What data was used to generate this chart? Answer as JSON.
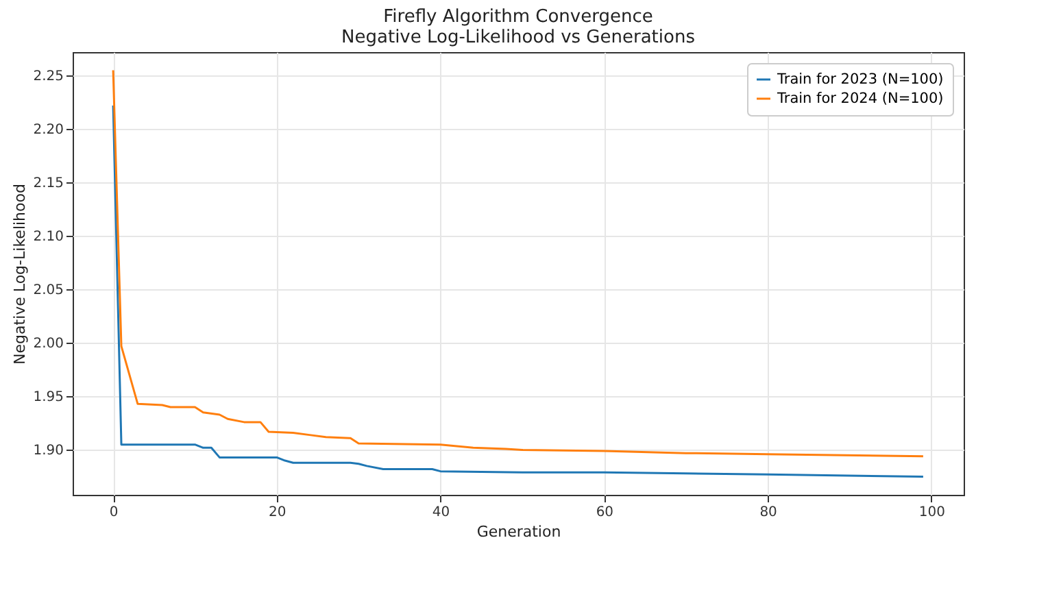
{
  "chart_data": {
    "type": "line",
    "title": "Firefly Algorithm Convergence",
    "subtitle": "Negative Log-Likelihood vs Generations",
    "xlabel": "Generation",
    "ylabel": "Negative Log-Likelihood",
    "xlim": [
      -4.95,
      103.95
    ],
    "xticks": [
      0,
      20,
      40,
      60,
      80,
      100
    ],
    "ylim": [
      1.858,
      2.272
    ],
    "yticks": [
      {
        "value": 1.9,
        "label": "1.90"
      },
      1.95,
      {
        "value": 2,
        "label": "2.00"
      },
      2.05,
      {
        "value": 2.1,
        "label": "2.10"
      },
      2.15,
      {
        "value": 2.2,
        "label": "2.20"
      },
      2.25
    ],
    "grid": true,
    "legend": "top right",
    "series": [
      {
        "name": "Train for 2023 (N=100)",
        "color": "#1f77b4",
        "x": [
          0,
          1,
          10,
          11,
          12,
          13,
          20,
          21,
          22,
          29,
          30,
          31,
          33,
          39,
          40,
          50,
          60,
          70,
          80,
          99
        ],
        "values": [
          2.222,
          1.905,
          1.905,
          1.902,
          1.902,
          1.893,
          1.893,
          1.89,
          1.888,
          1.888,
          1.887,
          1.885,
          1.882,
          1.882,
          1.88,
          1.879,
          1.879,
          1.878,
          1.877,
          1.875
        ]
      },
      {
        "name": "Train for 2024 (N=100)",
        "color": "#ff7f0e",
        "x": [
          0,
          1,
          3,
          6,
          7,
          10,
          11,
          13,
          14,
          16,
          18,
          19,
          22,
          24,
          26,
          29,
          30,
          40,
          44,
          48,
          50,
          60,
          70,
          80,
          99
        ],
        "values": [
          2.255,
          1.997,
          1.943,
          1.942,
          1.94,
          1.94,
          1.935,
          1.933,
          1.929,
          1.926,
          1.926,
          1.917,
          1.916,
          1.914,
          1.912,
          1.911,
          1.906,
          1.905,
          1.902,
          1.901,
          1.9,
          1.899,
          1.897,
          1.896,
          1.894
        ]
      }
    ]
  }
}
